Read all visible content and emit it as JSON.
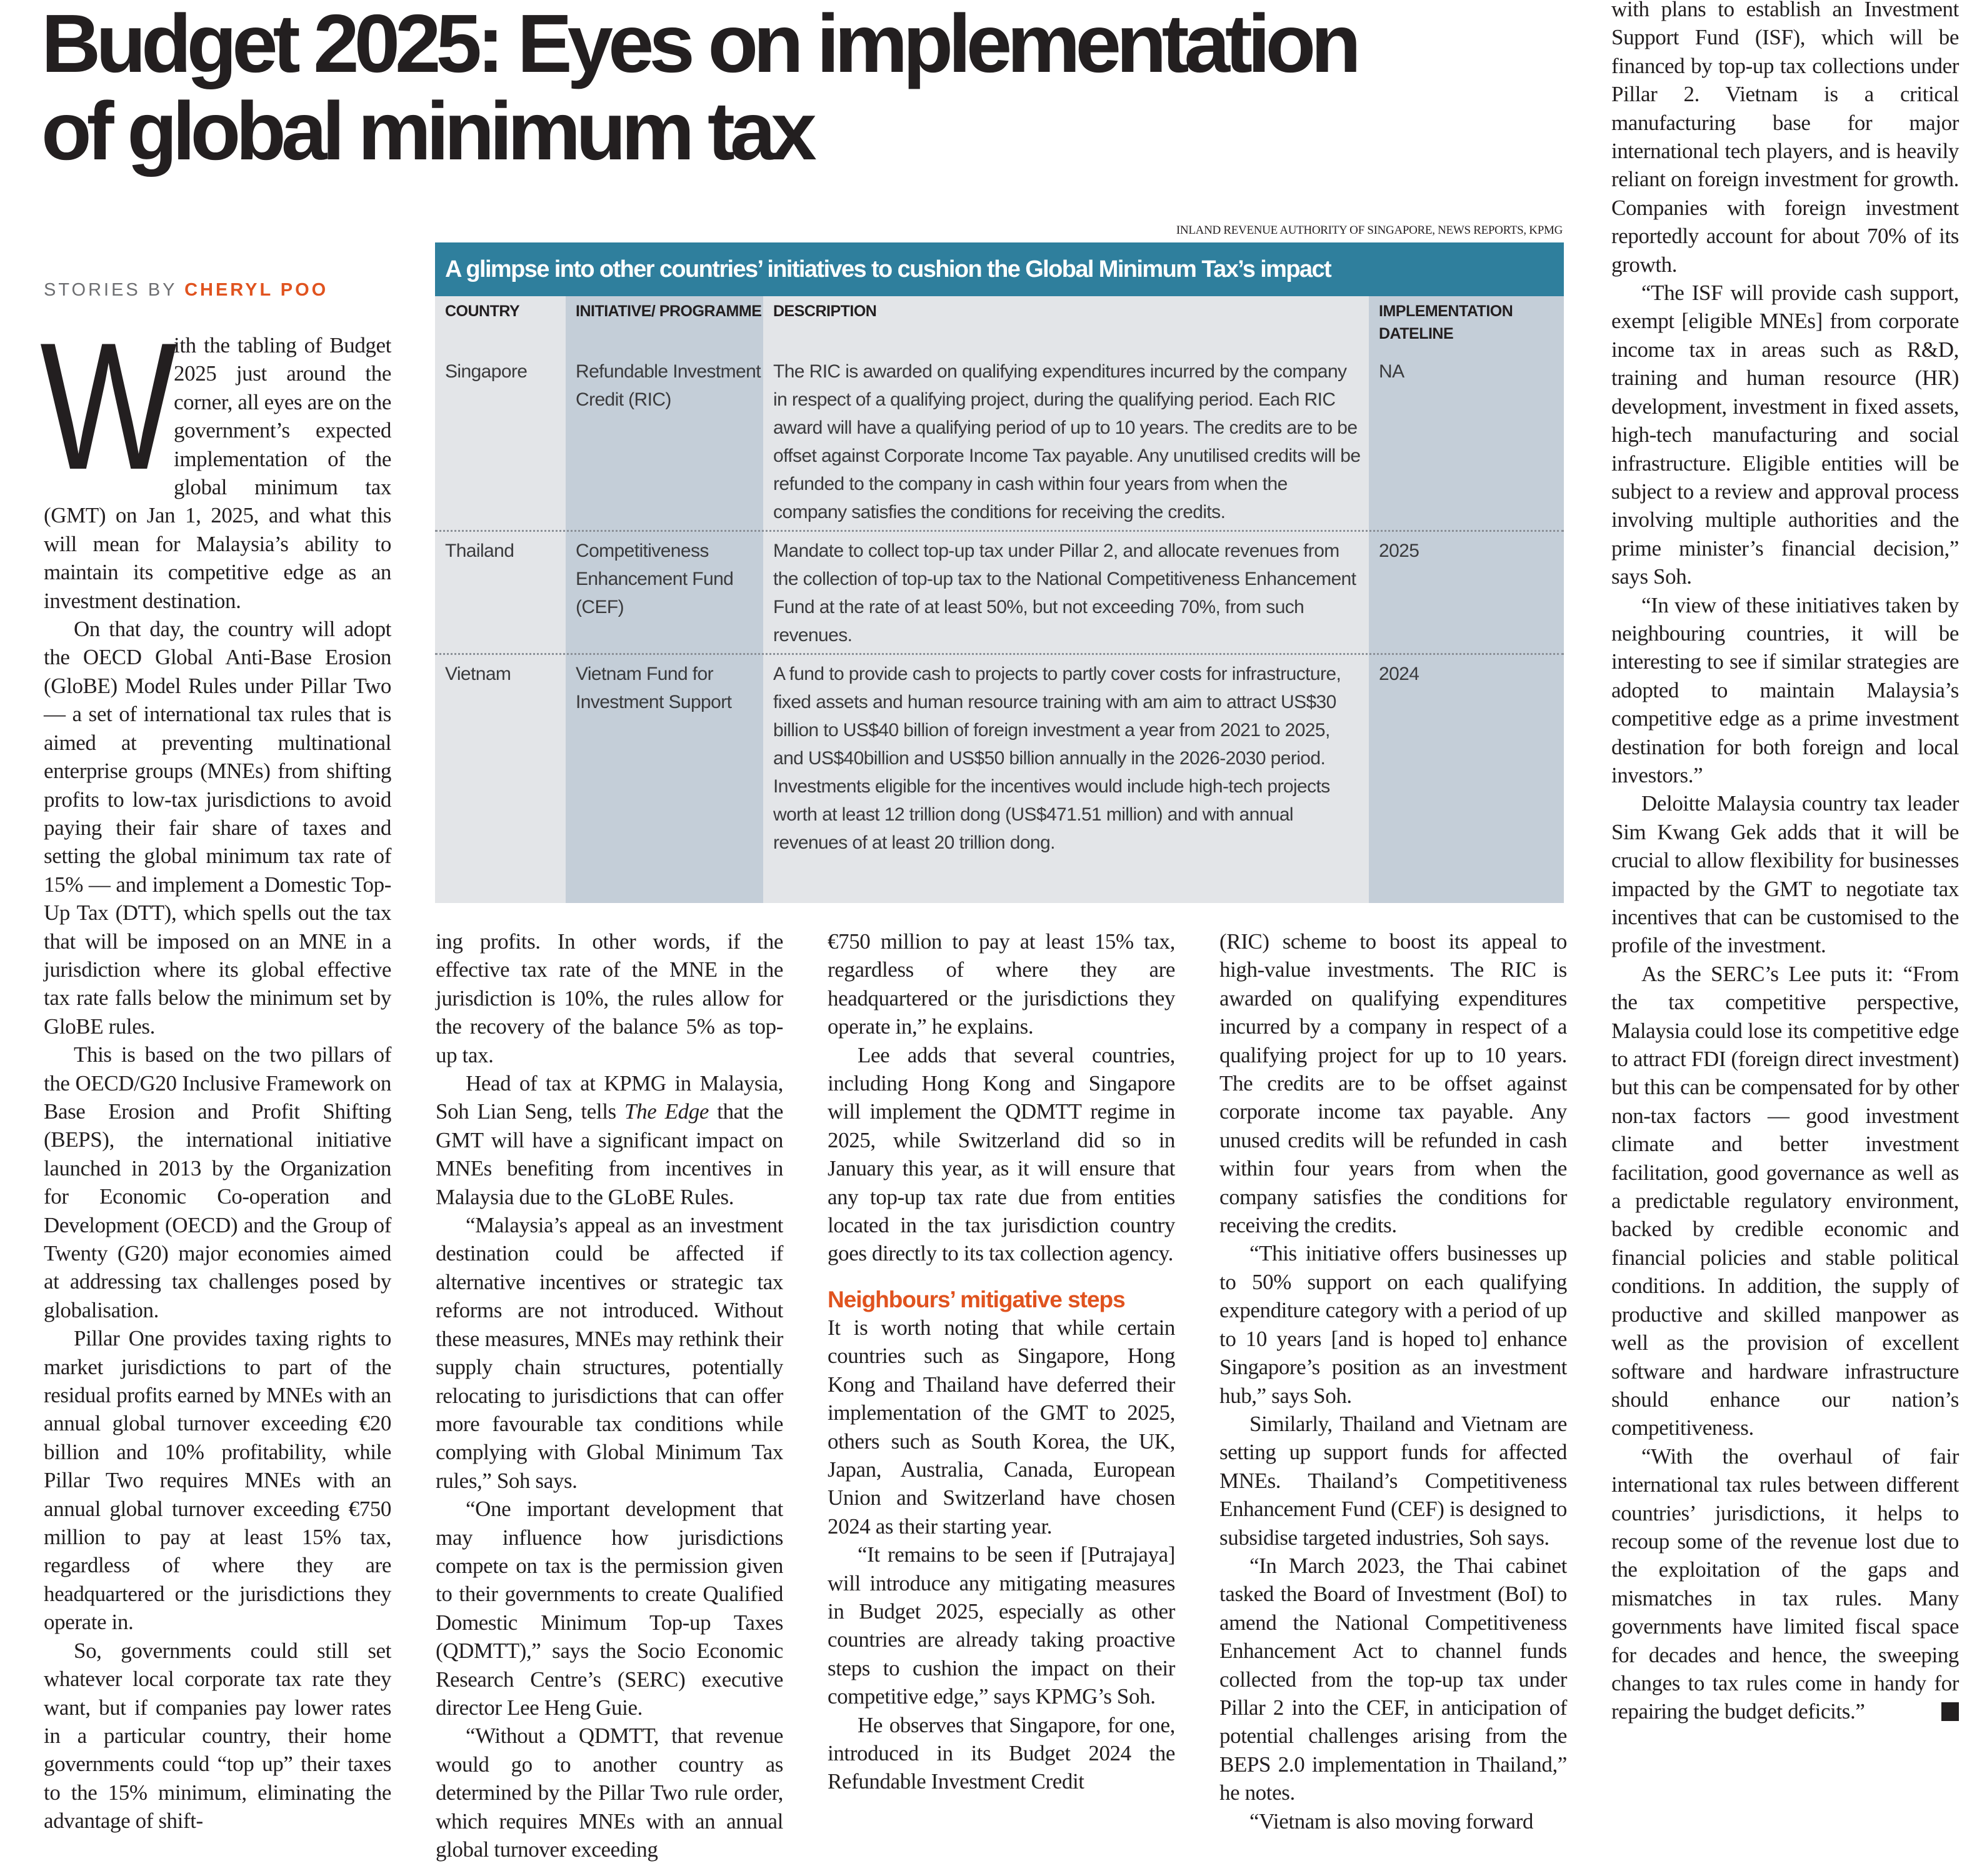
{
  "headline": {
    "line1": "Budget 2025: Eyes on implementation",
    "line2": "of global minimum tax"
  },
  "byline": {
    "prefix": "STORIES BY ",
    "author": "CHERYL POO"
  },
  "table": {
    "source": "INLAND REVENUE AUTHORITY OF SINGAPORE, NEWS REPORTS, KPMG",
    "title": "A glimpse into other countries’ initiatives to cushion the Global Minimum Tax’s impact",
    "headers": [
      "COUNTRY",
      "INITIATIVE/ PROGRAMME",
      "DESCRIPTION",
      "IMPLEMENTATION DATELINE"
    ],
    "rows": [
      {
        "country": "Singapore",
        "initiative": "Refundable Investment Credit (RIC)",
        "description": "The RIC is awarded on qualifying expenditures incurred by the company in respect of a qualifying project, during the qualifying period. Each RIC award will have a qualifying period of up to 10 years. The credits are to be offset against Corporate Income Tax payable. Any unutilised credits will be refunded to the company in cash within four years from when the company satisfies the conditions for receiving the credits.",
        "dateline": "NA"
      },
      {
        "country": "Thailand",
        "initiative": "Competitiveness Enhancement Fund (CEF)",
        "description": "Mandate to collect top-up tax under Pillar 2, and allocate revenues from the collection of top-up tax to the National Competitiveness Enhancement Fund at the rate of at least 50%, but not exceeding 70%, from such revenues.",
        "dateline": "2025"
      },
      {
        "country": "Vietnam",
        "initiative": "Vietnam Fund for Investment Support",
        "description": "A fund to provide cash to projects to partly cover costs for infrastructure, fixed assets and human resource training with am aim to attract US$30 billion to US$40 billion of foreign investment a year from 2021 to 2025, and US$40billion and US$50 billion annually in the 2026-2030 period. Investments eligible for the incentives would include high-tech projects worth at least 12 trillion dong (US$471.51 million) and with annual revenues of at least 20 trillion dong.",
        "dateline": "2024"
      }
    ]
  },
  "article": {
    "dropcap": "W",
    "columns": [
      {
        "paragraphs": [
          {
            "indent": false,
            "segments": [
              {
                "text": "ith the tabling of Budget 2025 just around the corner, all eyes are on the government’s expected implementation of the global minimum tax (GMT) on Jan 1, 2025, and what this will mean for Malaysia’s ability to maintain its competitive edge as an investment destination."
              }
            ]
          },
          {
            "indent": true,
            "segments": [
              {
                "text": "On that day, the country will adopt the OECD Global Anti-Base Erosion (GloBE) Model Rules under Pillar Two — a set of international tax rules that is aimed at preventing multinational enterprise groups (MNEs) from shifting profits to low-tax jurisdictions to avoid paying their fair share of taxes and setting the global minimum tax rate of 15% — and implement a Domestic Top-Up Tax (DTT), which spells out the tax that will be imposed on an MNE in a jurisdiction where its global effective tax rate falls below the minimum set by GloBE rules."
              }
            ]
          },
          {
            "indent": true,
            "segments": [
              {
                "text": "This is based on the two pillars of the OECD/G20 Inclusive Framework on Base Erosion and Profit Shifting (BEPS), the international initiative launched in 2013 by the Organization for Economic Co-operation and Development (OECD) and the Group of Twenty (G20) major economies aimed at addressing tax challenges posed by globalisation."
              }
            ]
          },
          {
            "indent": true,
            "segments": [
              {
                "text": "Pillar One provides taxing rights to market jurisdictions to part of the residual profits earned by MNEs with an annual global turnover exceeding €20 billion and 10% profitability, while Pillar Two requires MNEs with an annual global turnover exceeding €750 million to pay at least 15% tax, regardless of where they are headquartered or the jurisdictions they operate in."
              }
            ]
          },
          {
            "indent": true,
            "segments": [
              {
                "text": "So, governments could still set whatever local corporate tax rate they want, but if companies pay lower rates in a particular country, their home governments could “top up” their taxes to the 15% minimum, eliminating the advantage of shift-"
              }
            ]
          }
        ]
      },
      {
        "paragraphs": [
          {
            "indent": false,
            "segments": [
              {
                "text": "ing profits. In other words, if the effective tax rate of the MNE in the jurisdiction is 10%, the rules allow for the recovery of the balance 5% as top-up tax."
              }
            ]
          },
          {
            "indent": true,
            "segments": [
              {
                "text": "Head of tax at KPMG in Malaysia, Soh Lian Seng, tells "
              },
              {
                "text": "The Edge",
                "italic": true
              },
              {
                "text": " that the GMT will have a significant impact on MNEs benefiting from incentives in Malaysia due to the GLoBE Rules."
              }
            ]
          },
          {
            "indent": true,
            "segments": [
              {
                "text": "“Malaysia’s appeal as an investment destination could be affected if alternative incentives or strategic tax reforms are not introduced. Without these measures, MNEs may rethink their supply chain structures, potentially relocating to jurisdictions that can offer more favourable tax conditions while complying with Global Minimum Tax rules,” Soh says."
              }
            ]
          },
          {
            "indent": true,
            "segments": [
              {
                "text": "“One important development that may influence how jurisdictions compete on tax is the permission given to their governments to create Qualified Domestic Minimum Top-up Taxes (QDMTT),” says the Socio Economic Research Centre’s (SERC) executive director Lee Heng Guie."
              }
            ]
          },
          {
            "indent": true,
            "segments": [
              {
                "text": "“Without a QDMTT, that revenue would go to another country as determined by the Pillar Two rule order, which requires MNEs with an annual global turnover exceeding"
              }
            ]
          }
        ]
      },
      {
        "paragraphs": [
          {
            "indent": false,
            "segments": [
              {
                "text": "€750 million to pay at least 15% tax, regardless of where they are headquartered or the jurisdictions they operate in,” he explains."
              }
            ]
          },
          {
            "indent": true,
            "segments": [
              {
                "text": "Lee adds that several countries, including Hong Kong and Singapore will implement the QDMTT regime in 2025, while Switzerland did so in January this year, as it will ensure that any top-up tax rate due from entities located in the tax jurisdiction country goes directly to its tax collection agency."
              }
            ]
          },
          {
            "subhead": "Neighbours’ mitigative steps"
          },
          {
            "indent": false,
            "segments": [
              {
                "text": "It is worth noting that while certain countries such as Singapore, Hong Kong and Thailand have deferred their implementation of the GMT to 2025, others such as South Korea, the UK, Japan, Australia, Canada, European Union and Switzerland have chosen 2024 as their starting year."
              }
            ]
          },
          {
            "indent": true,
            "segments": [
              {
                "text": "“It remains to be seen if [Putrajaya] will introduce any mitigating measures in Budget 2025, especially as other countries are already taking proactive steps to cushion the impact on their competitive edge,” says KPMG’s Soh."
              }
            ]
          },
          {
            "indent": true,
            "segments": [
              {
                "text": "He observes that Singapore, for one, introduced in its Budget 2024 the Refundable Investment Credit"
              }
            ]
          }
        ]
      },
      {
        "paragraphs": [
          {
            "indent": false,
            "segments": [
              {
                "text": "(RIC) scheme to boost its appeal to high-value investments. The RIC is awarded on qualifying expenditures incurred by a company in respect of a qualifying project for up to 10 years. The credits are to be offset against corporate income tax payable. Any unused credits will be refunded in cash within four years from when the company satisfies the conditions for receiving the credits."
              }
            ]
          },
          {
            "indent": true,
            "segments": [
              {
                "text": "“This initiative offers businesses up to 50% support on each qualifying expenditure category with a period of up to 10 years [and is hoped to] enhance Singapore’s position as an investment hub,” says Soh."
              }
            ]
          },
          {
            "indent": true,
            "segments": [
              {
                "text": "Similarly, Thailand and Vietnam are setting up support funds for affected MNEs. Thailand’s Competitiveness Enhancement Fund (CEF) is designed to subsidise targeted industries, Soh says."
              }
            ]
          },
          {
            "indent": true,
            "segments": [
              {
                "text": "“In March 2023, the Thai cabinet tasked the Board of Investment (BoI) to amend the National Competitiveness Enhancement Act to channel funds collected from the top-up tax under Pillar 2 into the CEF, in anticipation of potential challenges arising from the BEPS 2.0 implementation in Thailand,” he notes."
              }
            ]
          },
          {
            "indent": true,
            "segments": [
              {
                "text": "“Vietnam is also moving forward"
              }
            ]
          }
        ]
      },
      {
        "paragraphs": [
          {
            "indent": false,
            "segments": [
              {
                "text": "with plans to establish an Investment Support Fund (ISF), which will be financed by top-up tax collections under Pillar 2. Vietnam is a critical manufacturing base for major international tech players, and is heavily reliant on foreign investment for growth. Companies with foreign investment reportedly account for about 70% of its growth."
              }
            ]
          },
          {
            "indent": true,
            "segments": [
              {
                "text": "“The ISF will provide cash support, exempt [eligible MNEs] from corporate income tax in areas such as R&D, training and human resource (HR) development, investment in fixed assets, high-tech manufacturing and social infrastructure. Eligible entities will be subject to a review and approval process involving multiple authorities and the prime minister’s financial decision,” says Soh."
              }
            ]
          },
          {
            "indent": true,
            "segments": [
              {
                "text": "“In view of these initiatives taken by neighbouring countries, it will be interesting to see if similar strategies are adopted to maintain Malaysia’s competitive edge as a prime investment destination for both foreign and local investors.”"
              }
            ]
          },
          {
            "indent": true,
            "segments": [
              {
                "text": "Deloitte Malaysia country tax leader Sim Kwang Gek adds that it will be crucial to allow flexibility for businesses impacted by the GMT to negotiate tax incentives that can be customised to the profile of the investment."
              }
            ]
          },
          {
            "indent": true,
            "segments": [
              {
                "text": "As the SERC’s Lee puts it: “From the tax competitive perspective, Malaysia could lose its competitive edge to attract FDI (foreign direct investment) but this can be compensated for by other non-tax factors — good investment climate and better investment facilitation, good governance as well as a predictable regulatory environment, backed by credible economic and financial policies and stable political conditions. In addition, the supply of productive and skilled manpower as well as the provision of excellent software and hardware infrastructure should enhance our nation’s competitiveness."
              }
            ]
          },
          {
            "indent": true,
            "segments": [
              {
                "text": "“With the overhaul of fair international tax rules between different countries’ jurisdictions, it helps to recoup some of the revenue lost due to the exploitation of the gaps and mismatches in tax rules. Many governments have limited fiscal space for decades and hence, the sweeping changes to tax rules come in handy for repairing the budget deficits.”"
              }
            ]
          }
        ]
      }
    ],
    "end_mark": "E"
  }
}
